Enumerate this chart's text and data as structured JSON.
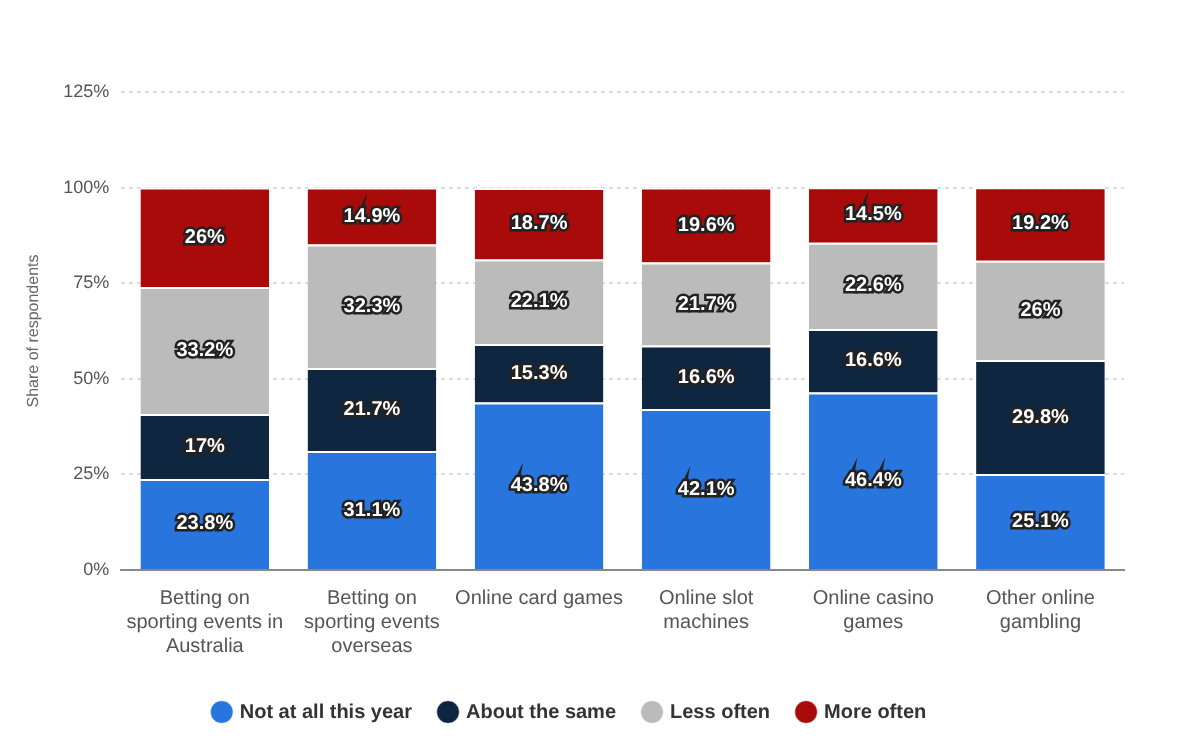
{
  "chart_data": {
    "type": "bar",
    "stacked": true,
    "ylabel": "Share of respondents",
    "categories": [
      "Betting on sporting events in Australia",
      "Betting on sporting events overseas",
      "Online card games",
      "Online slot machines",
      "Online casino games",
      "Other online gambling"
    ],
    "series": [
      {
        "name": "Not at all this year",
        "color": "#2876dd",
        "values": [
          23.8,
          31.1,
          43.8,
          42.1,
          46.4,
          25.1
        ],
        "value_labels": [
          "23.8%",
          "31.1%",
          "43.8%",
          "42.1%",
          "46.4%",
          "25.1%"
        ]
      },
      {
        "name": "About the same",
        "color": "#0f2640",
        "values": [
          17,
          21.7,
          15.3,
          16.6,
          16.6,
          29.8
        ],
        "value_labels": [
          "17%",
          "21.7%",
          "15.3%",
          "16.6%",
          "16.6%",
          "29.8%"
        ]
      },
      {
        "name": "Less often",
        "color": "#bbbbbb",
        "values": [
          33.2,
          32.3,
          22.1,
          21.7,
          22.6,
          26
        ],
        "value_labels": [
          "33.2%",
          "32.3%",
          "22.1%",
          "21.7%",
          "22.6%",
          "26%"
        ]
      },
      {
        "name": "More often",
        "color": "#a90a0a",
        "values": [
          26,
          14.9,
          18.7,
          19.6,
          14.5,
          19.2
        ],
        "value_labels": [
          "26%",
          "14.9%",
          "18.7%",
          "19.6%",
          "14.5%",
          "19.2%"
        ]
      }
    ],
    "ylim": [
      0,
      125
    ],
    "yticks": [
      {
        "value": 0,
        "label": "0%"
      },
      {
        "value": 25,
        "label": "25%"
      },
      {
        "value": 50,
        "label": "50%"
      },
      {
        "value": 75,
        "label": "75%"
      },
      {
        "value": 100,
        "label": "100%"
      },
      {
        "value": 125,
        "label": "125%"
      }
    ],
    "grid": "y",
    "legend": "bottom"
  }
}
